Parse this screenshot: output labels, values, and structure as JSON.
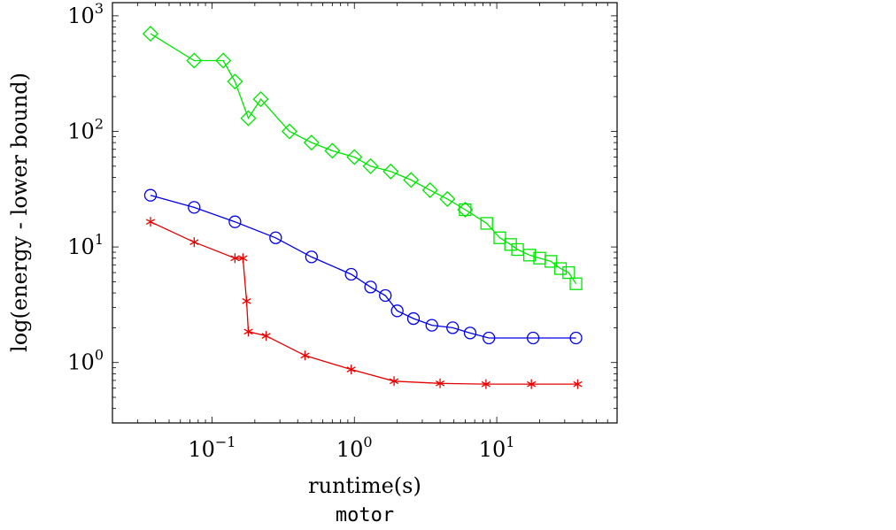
{
  "chart_data": {
    "type": "line",
    "title": "",
    "xlabel": "runtime(s)",
    "ylabel": "log(energy - lower bound)",
    "caption": "motor",
    "xscale": "log",
    "yscale": "log",
    "xlim": [
      0.02,
      70
    ],
    "ylim": [
      0.3,
      1300
    ],
    "grid": false,
    "x_ticks": [
      {
        "base": "10",
        "exp": "−1",
        "value": 0.1
      },
      {
        "base": "10",
        "exp": "0",
        "value": 1
      },
      {
        "base": "10",
        "exp": "1",
        "value": 10
      }
    ],
    "y_ticks": [
      {
        "base": "10",
        "exp": "0",
        "value": 1
      },
      {
        "base": "10",
        "exp": "1",
        "value": 10
      },
      {
        "base": "10",
        "exp": "2",
        "value": 100
      },
      {
        "base": "10",
        "exp": "3",
        "value": 1000
      }
    ],
    "series": [
      {
        "color": "#00e600",
        "marker": "diamond",
        "x": [
          0.037,
          0.075,
          0.12,
          0.145,
          0.18,
          0.22,
          0.35,
          0.5,
          0.7,
          1.0,
          1.3,
          1.8,
          2.5,
          3.4,
          4.5,
          6.0
        ],
        "y": [
          700,
          410,
          410,
          270,
          130,
          190,
          100,
          80,
          68,
          60,
          50,
          45,
          38,
          31,
          26,
          21
        ]
      },
      {
        "color": "#00e600",
        "marker": "square",
        "x": [
          6.0,
          8.5,
          10.5,
          12.5,
          14.0,
          17.0,
          20.0,
          24.0,
          28.0,
          32.0,
          36.0
        ],
        "y": [
          21,
          16,
          12,
          10.5,
          9.5,
          8.5,
          8.0,
          7.5,
          6.5,
          6.0,
          4.8
        ]
      },
      {
        "color": "#0000e6",
        "marker": "circle",
        "x": [
          0.037,
          0.075,
          0.145,
          0.28,
          0.5,
          0.95,
          1.3,
          1.65,
          2.0,
          2.6,
          3.5,
          4.9,
          6.5,
          8.8,
          18,
          36
        ],
        "y": [
          28,
          22,
          16.5,
          12,
          8.2,
          5.8,
          4.5,
          3.8,
          2.8,
          2.4,
          2.1,
          2.0,
          1.8,
          1.63,
          1.63,
          1.63
        ]
      },
      {
        "color": "#e60000",
        "marker": "star",
        "x": [
          0.037,
          0.075,
          0.145,
          0.165,
          0.175,
          0.18,
          0.24,
          0.45,
          0.95,
          1.9,
          4.0,
          8.4,
          17.5,
          37
        ],
        "y": [
          16.5,
          11,
          8.0,
          8.0,
          3.4,
          1.85,
          1.7,
          1.15,
          0.87,
          0.69,
          0.66,
          0.65,
          0.65,
          0.65
        ]
      }
    ]
  }
}
